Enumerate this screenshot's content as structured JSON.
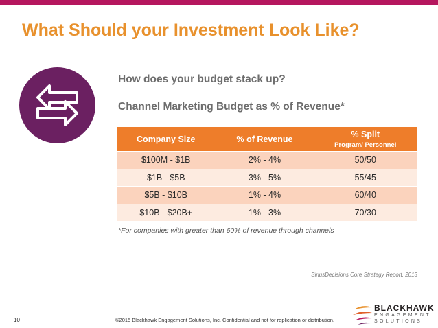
{
  "slide": {
    "title": "What Should your Investment Look Like?",
    "subtitle": "How does your budget stack up?",
    "table_title": "Channel Marketing Budget as % of Revenue*",
    "icon": "swap-arrows-icon",
    "colors": {
      "title": "#e8912d",
      "top_bar": "#b5165e",
      "icon_circle": "#6b2061",
      "table_header": "#ee7d2a",
      "row_odd": "#fbd3bd",
      "row_even": "#fdebe0"
    }
  },
  "table": {
    "headers": [
      "Company Size",
      "% of Revenue",
      "% Split"
    ],
    "header_sub": "Program/ Personnel",
    "rows": [
      [
        "$100M - $1B",
        "2% - 4%",
        "50/50"
      ],
      [
        "$1B - $5B",
        "3% - 5%",
        "55/45"
      ],
      [
        "$5B - $10B",
        "1% - 4%",
        "60/40"
      ],
      [
        "$10B - $20B+",
        "1% - 3%",
        "70/30"
      ]
    ]
  },
  "footnote": "*For companies with greater than 60% of revenue through channels",
  "source": "SiriusDecisions Core Strategy Report, 2013",
  "footer": {
    "page_number": "10",
    "copyright": "©2015 Blackhawk Engagement Solutions, Inc. Confidential and not for replication or distribution."
  },
  "logo": {
    "name": "BLACKHAWK",
    "line1": "ENGAGEMENT",
    "line2": "SOLUTIONS"
  }
}
